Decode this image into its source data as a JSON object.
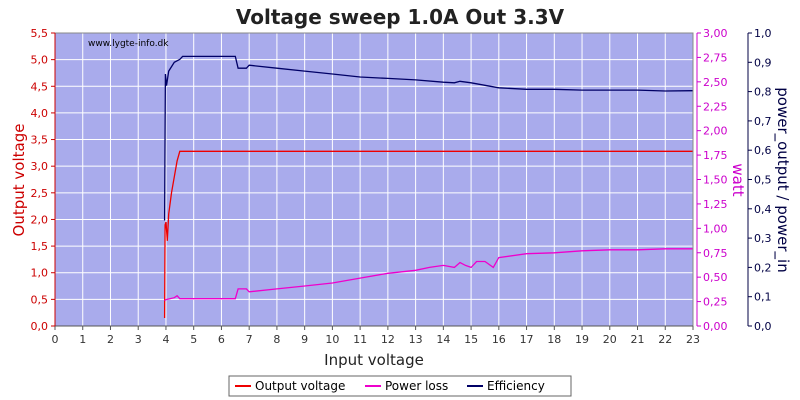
{
  "chart_data": {
    "type": "line",
    "title": "Voltage sweep 1.0A Out 3.3V",
    "watermark": "www.lygte-info.dk",
    "xlabel": "Input voltage",
    "ylabel_left": "Output voltage",
    "ylabel_right1": "watt",
    "ylabel_right2": "power_output / power_in",
    "xlim": [
      0,
      23
    ],
    "ylim_left": [
      0,
      5.5
    ],
    "ylim_right1": [
      0,
      3
    ],
    "ylim_right2": [
      0,
      1
    ],
    "x_ticks": [
      "0",
      "1",
      "2",
      "3",
      "4",
      "5",
      "6",
      "7",
      "8",
      "9",
      "10",
      "11",
      "12",
      "13",
      "14",
      "15",
      "16",
      "17",
      "18",
      "19",
      "20",
      "21",
      "22",
      "23"
    ],
    "left_ticks": [
      "0,0",
      "0,5",
      "1,0",
      "1,5",
      "2,0",
      "2,5",
      "3,0",
      "3,5",
      "4,0",
      "4,5",
      "5,0",
      "5,5"
    ],
    "right1_ticks": [
      "0,00",
      "0,25",
      "0,50",
      "0,75",
      "1,00",
      "1,25",
      "1,50",
      "1,75",
      "2,00",
      "2,25",
      "2,50",
      "2,75",
      "3,00"
    ],
    "right2_ticks": [
      "0,0",
      "0,1",
      "0,2",
      "0,3",
      "0,4",
      "0,5",
      "0,6",
      "0,7",
      "0,8",
      "0,9",
      "1,0"
    ],
    "grid": true,
    "legend_position": "bottom",
    "colors": {
      "plot_bg": "#a9abec",
      "grid": "#ffffff",
      "output": "#ee0000",
      "power": "#ee00cc",
      "efficiency": "#000066",
      "left_axis": "#cc0000",
      "right1_axis": "#cc00cc",
      "right2_axis": "#000044"
    },
    "series": [
      {
        "name": "Output voltage",
        "axis": "left",
        "points": [
          [
            3.95,
            0.15
          ],
          [
            3.97,
            1.9
          ],
          [
            4.0,
            1.95
          ],
          [
            4.05,
            1.6
          ],
          [
            4.1,
            2.1
          ],
          [
            4.2,
            2.5
          ],
          [
            4.3,
            2.8
          ],
          [
            4.4,
            3.1
          ],
          [
            4.5,
            3.28
          ],
          [
            23.0,
            3.28
          ]
        ]
      },
      {
        "name": "Power loss",
        "axis": "right1",
        "points": [
          [
            3.95,
            0.26
          ],
          [
            4.0,
            0.27
          ],
          [
            4.3,
            0.29
          ],
          [
            4.4,
            0.31
          ],
          [
            4.5,
            0.28
          ],
          [
            5.0,
            0.28
          ],
          [
            6.0,
            0.28
          ],
          [
            6.5,
            0.28
          ],
          [
            6.6,
            0.38
          ],
          [
            6.9,
            0.38
          ],
          [
            7.0,
            0.35
          ],
          [
            8.0,
            0.38
          ],
          [
            9.0,
            0.41
          ],
          [
            10.0,
            0.44
          ],
          [
            11.0,
            0.49
          ],
          [
            12.0,
            0.54
          ],
          [
            13.0,
            0.57
          ],
          [
            13.5,
            0.6
          ],
          [
            14.0,
            0.62
          ],
          [
            14.4,
            0.6
          ],
          [
            14.6,
            0.65
          ],
          [
            14.8,
            0.62
          ],
          [
            15.0,
            0.6
          ],
          [
            15.2,
            0.66
          ],
          [
            15.5,
            0.66
          ],
          [
            15.8,
            0.6
          ],
          [
            16.0,
            0.7
          ],
          [
            17.0,
            0.74
          ],
          [
            18.0,
            0.75
          ],
          [
            19.0,
            0.77
          ],
          [
            20.0,
            0.78
          ],
          [
            21.0,
            0.78
          ],
          [
            22.0,
            0.79
          ],
          [
            23.0,
            0.79
          ]
        ]
      },
      {
        "name": "Efficiency",
        "axis": "right2",
        "points": [
          [
            3.95,
            0.36
          ],
          [
            3.98,
            0.86
          ],
          [
            4.02,
            0.82
          ],
          [
            4.1,
            0.87
          ],
          [
            4.3,
            0.9
          ],
          [
            4.5,
            0.91
          ],
          [
            4.6,
            0.92
          ],
          [
            6.5,
            0.92
          ],
          [
            6.6,
            0.88
          ],
          [
            6.9,
            0.88
          ],
          [
            7.0,
            0.89
          ],
          [
            8.0,
            0.88
          ],
          [
            9.0,
            0.87
          ],
          [
            10.0,
            0.86
          ],
          [
            11.0,
            0.85
          ],
          [
            12.0,
            0.845
          ],
          [
            13.0,
            0.84
          ],
          [
            14.0,
            0.832
          ],
          [
            14.4,
            0.83
          ],
          [
            14.6,
            0.835
          ],
          [
            15.0,
            0.83
          ],
          [
            16.0,
            0.813
          ],
          [
            17.0,
            0.808
          ],
          [
            18.0,
            0.808
          ],
          [
            19.0,
            0.805
          ],
          [
            20.0,
            0.805
          ],
          [
            21.0,
            0.805
          ],
          [
            22.0,
            0.802
          ],
          [
            23.0,
            0.803
          ]
        ]
      }
    ]
  }
}
